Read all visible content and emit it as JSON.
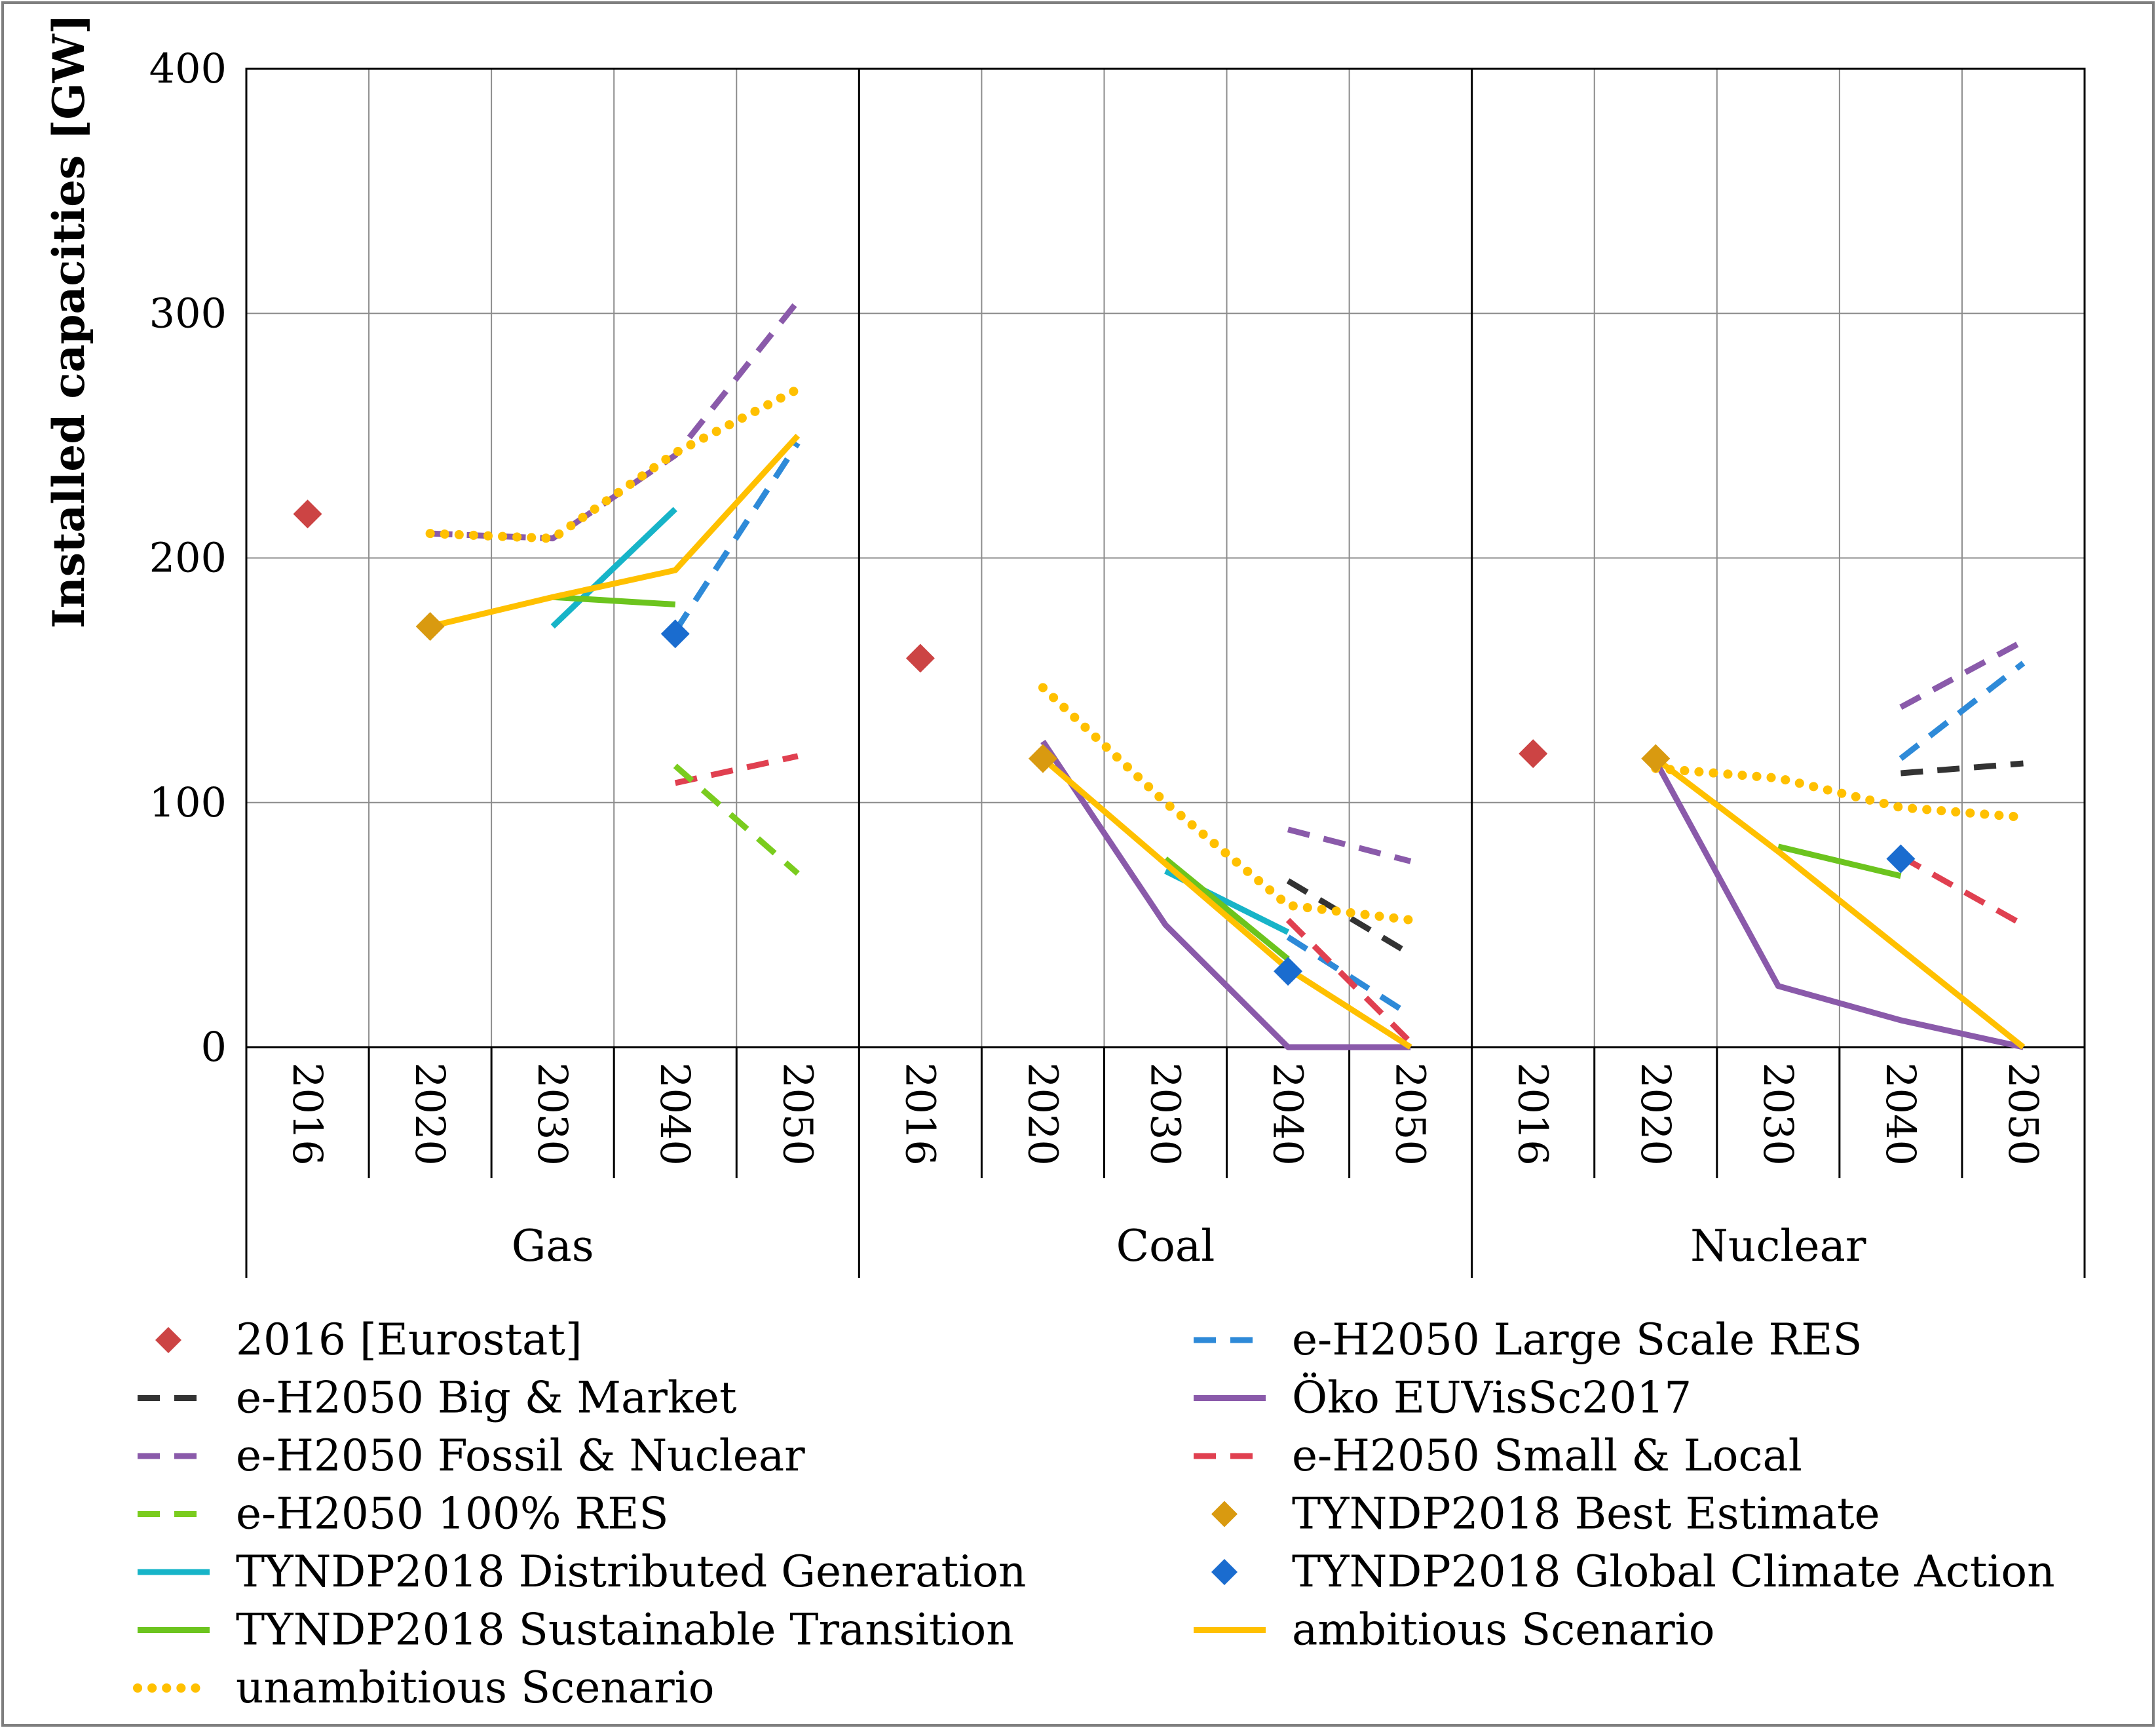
{
  "chart_data": {
    "type": "line",
    "title": "",
    "ylabel": "Installed capacities [GW]",
    "xlabel": "",
    "ylim": [
      0,
      400
    ],
    "yticks": [
      "0",
      "100",
      "200",
      "300",
      "400"
    ],
    "ytick_values": [
      0,
      100,
      200,
      300,
      400
    ],
    "grid": true,
    "legend_position": "bottom",
    "groups": [
      {
        "name": "Gas",
        "years": [
          "2016",
          "2020",
          "2030",
          "2040",
          "2050"
        ]
      },
      {
        "name": "Coal",
        "years": [
          "2016",
          "2020",
          "2030",
          "2040",
          "2050"
        ]
      },
      {
        "name": "Nuclear",
        "years": [
          "2016",
          "2020",
          "2030",
          "2040",
          "2050"
        ]
      }
    ],
    "series": [
      {
        "name": "2016 [Eurostat]",
        "style": "marker",
        "color": "#cc4444",
        "values": [
          [
            218,
            null,
            null,
            null,
            null
          ],
          [
            159,
            null,
            null,
            null,
            null
          ],
          [
            120,
            null,
            null,
            null,
            null
          ]
        ]
      },
      {
        "name": "e-H2050 Large Scale RES",
        "style": "dashed",
        "color": "#2e8ad8",
        "values": [
          [
            null,
            null,
            null,
            170,
            247
          ],
          [
            null,
            null,
            null,
            45,
            13
          ],
          [
            null,
            null,
            null,
            118,
            157
          ]
        ]
      },
      {
        "name": "e-H2050 Big & Market",
        "style": "dashed",
        "color": "#333333",
        "values": [
          [
            null,
            null,
            null,
            null,
            null
          ],
          [
            null,
            null,
            null,
            68,
            38
          ],
          [
            null,
            null,
            null,
            112,
            116
          ]
        ]
      },
      {
        "name": "Öko EUVisSc2017",
        "style": "solid",
        "color": "#8a5aaa",
        "values": [
          [
            null,
            null,
            null,
            null,
            null
          ],
          [
            null,
            125,
            50,
            0,
            0
          ],
          [
            null,
            117,
            25,
            11,
            0
          ]
        ]
      },
      {
        "name": "e-H2050 Fossil & Nuclear",
        "style": "dashed",
        "color": "#8a5aaa",
        "values": [
          [
            null,
            210,
            208,
            242,
            305
          ],
          [
            null,
            null,
            null,
            89,
            76
          ],
          [
            null,
            null,
            null,
            139,
            166
          ]
        ]
      },
      {
        "name": "e-H2050 Small & Local",
        "style": "dashed",
        "color": "#e04050",
        "values": [
          [
            null,
            null,
            null,
            108,
            119
          ],
          [
            null,
            null,
            null,
            52,
            2
          ],
          [
            null,
            null,
            null,
            78,
            50
          ]
        ]
      },
      {
        "name": "e-H2050 100% RES",
        "style": "dashed",
        "color": "#7acc1e",
        "values": [
          [
            null,
            null,
            null,
            115,
            71
          ],
          [
            null,
            null,
            null,
            null,
            null
          ],
          [
            null,
            null,
            null,
            null,
            null
          ]
        ]
      },
      {
        "name": "TYNDP2018 Best Estimate",
        "style": "marker",
        "color": "#d99a10",
        "values": [
          [
            null,
            172,
            null,
            null,
            null
          ],
          [
            null,
            118,
            null,
            null,
            null
          ],
          [
            null,
            118,
            null,
            null,
            null
          ]
        ]
      },
      {
        "name": "TYNDP2018 Distributed Generation",
        "style": "solid",
        "color": "#17b4c8",
        "values": [
          [
            null,
            null,
            172,
            220,
            null
          ],
          [
            null,
            null,
            72,
            47,
            null
          ],
          [
            null,
            null,
            null,
            null,
            null
          ]
        ]
      },
      {
        "name": "TYNDP2018 Global Climate Action",
        "style": "marker",
        "color": "#1a6ccf",
        "values": [
          [
            null,
            null,
            null,
            169,
            null
          ],
          [
            null,
            null,
            null,
            31,
            null
          ],
          [
            null,
            null,
            null,
            77,
            null
          ]
        ]
      },
      {
        "name": "TYNDP2018 Sustainable Transition",
        "style": "solid",
        "color": "#6cc41e",
        "values": [
          [
            null,
            null,
            184,
            181,
            null
          ],
          [
            null,
            null,
            77,
            36,
            null
          ],
          [
            null,
            null,
            82,
            70,
            null
          ]
        ]
      },
      {
        "name": "ambitious Scenario",
        "style": "solid",
        "color": "#ffc000",
        "values": [
          [
            null,
            172,
            184,
            195,
            250
          ],
          [
            null,
            118,
            75,
            32,
            0
          ],
          [
            null,
            118,
            80,
            40,
            0
          ]
        ]
      },
      {
        "name": "unambitious Scenario",
        "style": "dotted",
        "color": "#ffc000",
        "values": [
          [
            null,
            210,
            208,
            243,
            269
          ],
          [
            null,
            147,
            100,
            58,
            52
          ],
          [
            null,
            114,
            110,
            98,
            94
          ]
        ]
      }
    ],
    "legend": [
      "2016 [Eurostat]",
      "e-H2050 Large Scale RES",
      "e-H2050 Big & Market",
      "Öko EUVisSc2017",
      "e-H2050 Fossil & Nuclear",
      "e-H2050 Small & Local",
      "e-H2050 100% RES",
      "TYNDP2018 Best Estimate",
      "TYNDP2018 Distributed Generation",
      "TYNDP2018 Global Climate Action",
      "TYNDP2018 Sustainable Transition",
      "ambitious Scenario",
      "unambitious Scenario"
    ]
  }
}
